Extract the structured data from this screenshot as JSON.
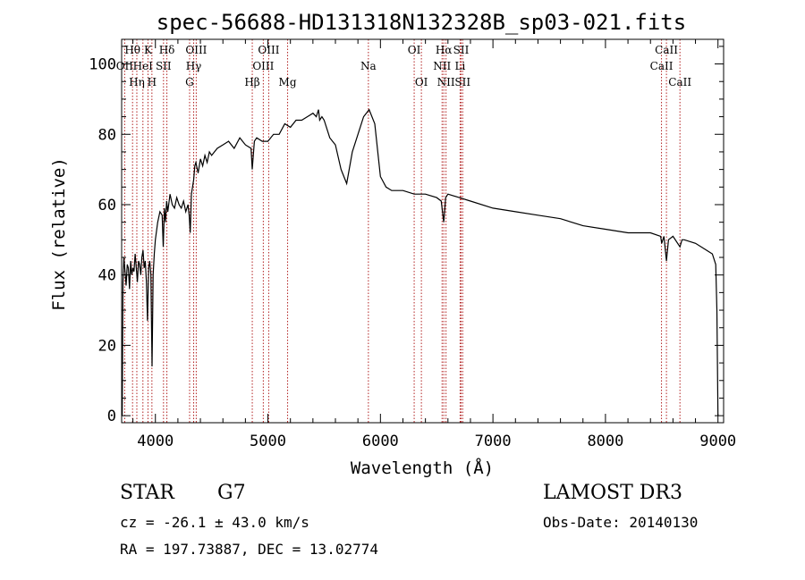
{
  "chart_data": {
    "type": "line",
    "title": "spec-56688-HD131318N132328B_sp03-021.fits",
    "xlabel": "Wavelength (Å)",
    "ylabel": "Flux (relative)",
    "xlim": [
      3700,
      9050
    ],
    "ylim": [
      -2,
      107
    ],
    "xticks": [
      4000,
      5000,
      6000,
      7000,
      8000,
      9000
    ],
    "yticks": [
      0,
      20,
      40,
      60,
      80,
      100
    ],
    "grid": false,
    "line_color": "#000000",
    "marker_color": "#b22222",
    "spectral_lines": [
      {
        "name": "Hθ",
        "x": 3797,
        "row": 0
      },
      {
        "name": "OII",
        "x": 3727,
        "row": 1
      },
      {
        "name": "Hη",
        "x": 3835,
        "row": 2
      },
      {
        "name": "HeI",
        "x": 3889,
        "row": 1
      },
      {
        "name": "K",
        "x": 3934,
        "row": 0
      },
      {
        "name": "H",
        "x": 3969,
        "row": 2
      },
      {
        "name": "SII",
        "x": 4072,
        "row": 1
      },
      {
        "name": "Hδ",
        "x": 4102,
        "row": 0
      },
      {
        "name": "G",
        "x": 4304,
        "row": 2
      },
      {
        "name": "Hγ",
        "x": 4340,
        "row": 1
      },
      {
        "name": "OIII",
        "x": 4363,
        "row": 0
      },
      {
        "name": "Hβ",
        "x": 4861,
        "row": 2
      },
      {
        "name": "OIII",
        "x": 4959,
        "row": 1
      },
      {
        "name": "OIII",
        "x": 5007,
        "row": 0
      },
      {
        "name": "Mg",
        "x": 5175,
        "row": 2
      },
      {
        "name": "Na",
        "x": 5893,
        "row": 1
      },
      {
        "name": "OI",
        "x": 6300,
        "row": 0
      },
      {
        "name": "OI",
        "x": 6364,
        "row": 2
      },
      {
        "name": "NII",
        "x": 6548,
        "row": 1
      },
      {
        "name": "Hα",
        "x": 6563,
        "row": 0
      },
      {
        "name": "NII",
        "x": 6583,
        "row": 2
      },
      {
        "name": "Li",
        "x": 6708,
        "row": 1
      },
      {
        "name": "SII",
        "x": 6717,
        "row": 0
      },
      {
        "name": "SII",
        "x": 6731,
        "row": 2
      },
      {
        "name": "CaII",
        "x": 8498,
        "row": 1
      },
      {
        "name": "CaII",
        "x": 8542,
        "row": 0
      },
      {
        "name": "CaII",
        "x": 8662,
        "row": 2
      }
    ],
    "series": [
      {
        "x": [
          3705,
          3712,
          3720,
          3730,
          3740,
          3750,
          3760,
          3770,
          3780,
          3790,
          3800,
          3810,
          3820,
          3830,
          3840,
          3850,
          3860,
          3870,
          3880,
          3890,
          3900,
          3910,
          3920,
          3930,
          3940,
          3950,
          3960,
          3970,
          3980,
          3990,
          4000,
          4020,
          4040,
          4060,
          4070,
          4080,
          4090,
          4100,
          4110,
          4130,
          4150,
          4170,
          4190,
          4210,
          4230,
          4250,
          4270,
          4290,
          4300,
          4310,
          4320,
          4340,
          4350,
          4360,
          4380,
          4400,
          4420,
          4440,
          4460,
          4480,
          4500,
          4550,
          4600,
          4650,
          4700,
          4750,
          4800,
          4850,
          4861,
          4880,
          4900,
          4950,
          5000,
          5050,
          5100,
          5150,
          5200,
          5250,
          5300,
          5350,
          5400,
          5430,
          5450,
          5460,
          5480,
          5500,
          5550,
          5600,
          5650,
          5700,
          5750,
          5800,
          5850,
          5900,
          5950,
          6000,
          6050,
          6100,
          6200,
          6300,
          6400,
          6500,
          6540,
          6563,
          6580,
          6600,
          6700,
          6800,
          7000,
          7200,
          7400,
          7600,
          7800,
          8000,
          8200,
          8400,
          8490,
          8500,
          8520,
          8542,
          8560,
          8600,
          8662,
          8680,
          8700,
          8800,
          8900,
          8950,
          8980,
          8990,
          9000
        ],
        "y": [
          0,
          38,
          45,
          41,
          37,
          43,
          42,
          36,
          44,
          40,
          42,
          41,
          46,
          42,
          38,
          44,
          43,
          40,
          45,
          47,
          42,
          44,
          38,
          27,
          42,
          44,
          40,
          14,
          40,
          46,
          50,
          55,
          58,
          57,
          48,
          59,
          55,
          61,
          58,
          63,
          60,
          59,
          62,
          60,
          59,
          61,
          58,
          60,
          57,
          52,
          63,
          67,
          71,
          72,
          69,
          73,
          71,
          74,
          72,
          75,
          74,
          76,
          77,
          78,
          76,
          79,
          77,
          76,
          70,
          78,
          79,
          78,
          78,
          80,
          80,
          83,
          82,
          84,
          84,
          85,
          86,
          85,
          87,
          84,
          85,
          84,
          79,
          77,
          70,
          66,
          75,
          80,
          85,
          87,
          83,
          68,
          65,
          64,
          64,
          63,
          63,
          62,
          61,
          55,
          62,
          63,
          62,
          61,
          59,
          58,
          57,
          56,
          54,
          53,
          52,
          52,
          51,
          49,
          51,
          44,
          50,
          51,
          48,
          50,
          50,
          49,
          47,
          46,
          43,
          30,
          0
        ]
      }
    ]
  },
  "info": {
    "object_class": "STAR",
    "subclass": "G7",
    "survey": "LAMOST DR3",
    "cz_text": "cz = -26.1 ± 43.0 km/s",
    "obs_date": "Obs-Date: 20140130",
    "coords": "RA = 197.73887, DEC =  13.02774"
  }
}
